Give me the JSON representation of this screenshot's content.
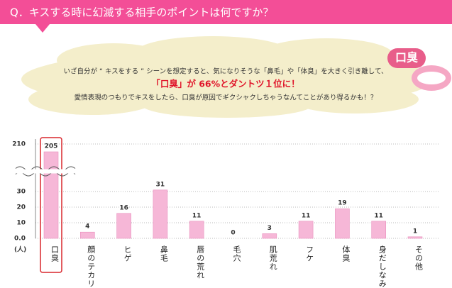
{
  "header": {
    "title": "Q．キスする時に幻滅する相手のポイントは何ですか？"
  },
  "note": {
    "badge": "口臭",
    "lines": [
      "いざ自分が “ キスをする ” シーンを想定すると、気になりそうな「鼻毛」や「体臭」を大きく引き離して、",
      "「口臭」が 66%とダントツ１位に！",
      "愛情表現のつもりでキスをしたら、口臭が原因でギクシャクしちゃうなんてことがあり得るかも！？"
    ]
  },
  "chart_data": {
    "type": "bar",
    "y_label": "(人)",
    "categories": [
      "口臭",
      "顔のテカリ",
      "ヒゲ",
      "鼻毛",
      "唇の荒れ",
      "毛穴",
      "肌荒れ",
      "フケ",
      "体臭",
      "身だしなみ",
      "その他"
    ],
    "values": [
      205,
      4,
      16,
      31,
      11,
      0,
      3,
      11,
      19,
      11,
      1
    ],
    "color": "#f6b7d7",
    "ylim": [
      0,
      210
    ],
    "yticks": [
      {
        "value": 0,
        "label": "0.0"
      },
      10,
      20,
      30,
      210
    ],
    "axis_break": true,
    "grid": true
  }
}
